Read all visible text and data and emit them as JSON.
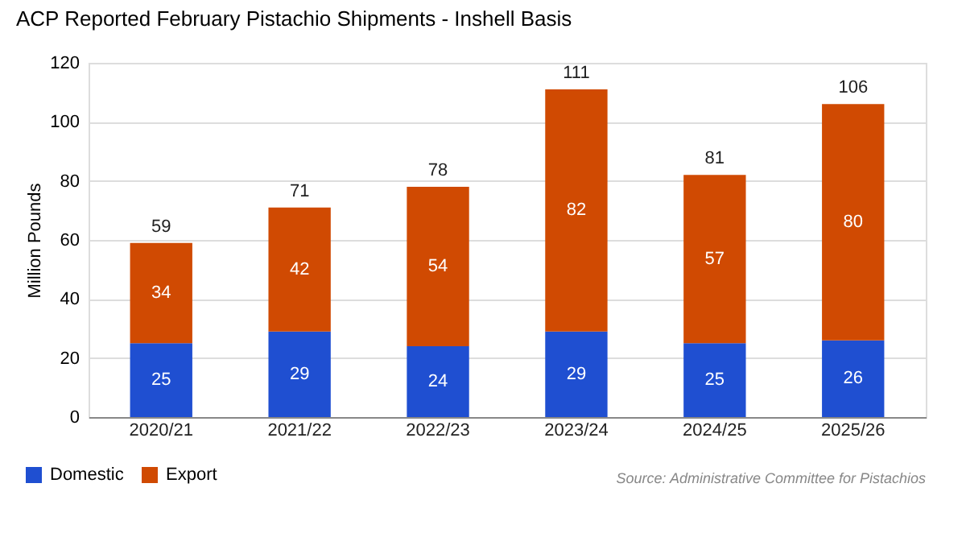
{
  "chart_data": {
    "type": "bar",
    "title": "ACP Reported February Pistachio Shipments - Inshell Basis",
    "ylabel": "Million Pounds",
    "categories": [
      "2020/21",
      "2021/22",
      "2022/23",
      "2023/24",
      "2024/25",
      "2025/26"
    ],
    "series": [
      {
        "name": "Domestic",
        "color": "#1f4fd1",
        "values": [
          25,
          29,
          24,
          29,
          25,
          26
        ]
      },
      {
        "name": "Export",
        "color": "#d04a02",
        "values": [
          34,
          42,
          54,
          82,
          57,
          80
        ]
      }
    ],
    "stacked": true,
    "data_labels": true,
    "totals": [
      "59",
      "71",
      "78",
      "111",
      "81",
      "106"
    ],
    "ylim": [
      0,
      120
    ],
    "yticks": [
      0,
      20,
      40,
      60,
      80,
      100,
      120
    ],
    "grid": "y",
    "legend": "bottom left",
    "annotations": [
      "Source: Administrative Committee for Pistachios"
    ]
  }
}
